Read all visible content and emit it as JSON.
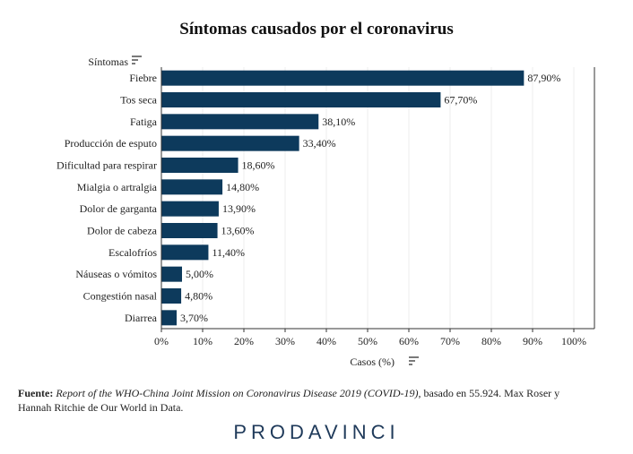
{
  "chart_data": {
    "type": "bar",
    "orientation": "horizontal",
    "title": "Síntomas causados por el coronavirus",
    "ylabel": "Síntomas",
    "xlabel": "Casos (%)",
    "xlim": [
      0,
      100
    ],
    "x_ticks": [
      "0%",
      "10%",
      "20%",
      "30%",
      "40%",
      "50%",
      "60%",
      "70%",
      "80%",
      "90%",
      "100%"
    ],
    "grid": true,
    "bar_color": "#0d3a5c",
    "categories": [
      "Fiebre",
      "Tos seca",
      "Fatiga",
      "Producción de esputo",
      "Dificultad para respirar",
      "Mialgia o artralgia",
      "Dolor de garganta",
      "Dolor de cabeza",
      "Escalofríos",
      "Náuseas o vómitos",
      "Congestión nasal",
      "Diarrea"
    ],
    "values": [
      87.9,
      67.7,
      38.1,
      33.4,
      18.6,
      14.8,
      13.9,
      13.6,
      11.4,
      5.0,
      4.8,
      3.7
    ],
    "data_labels": [
      "87,90%",
      "67,70%",
      "38,10%",
      "33,40%",
      "18,60%",
      "14,80%",
      "13,90%",
      "13,60%",
      "11,40%",
      "5,00%",
      "4,80%",
      "3,70%"
    ]
  },
  "source": {
    "prefix": "Fuente:",
    "report": "Report of the WHO-China Joint Mission on Coronavirus Disease 2019 (COVID-19)",
    "rest": ", basado en 55.924. Max Roser y Hannah Ritchie de Our World in Data."
  },
  "brand": "PRODAVINCI",
  "icons": {
    "ylabel_sort": "sort-icon",
    "xlabel_sort": "sort-icon"
  }
}
